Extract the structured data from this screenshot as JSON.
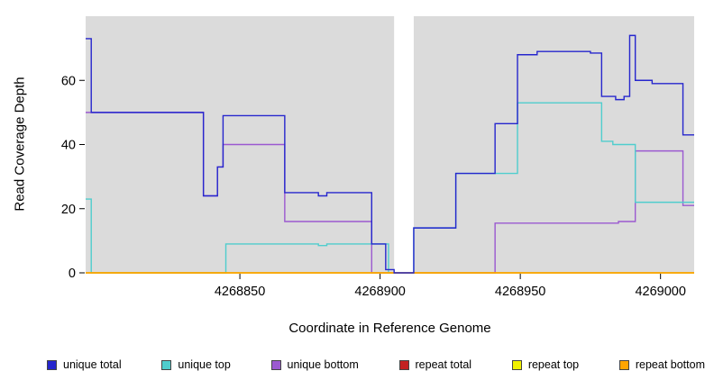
{
  "chart_data": {
    "type": "line",
    "step": true,
    "title": "",
    "xlabel": "Coordinate in Reference Genome",
    "ylabel": "Read Coverage Depth",
    "xlim": [
      4268795,
      4269012
    ],
    "ylim": [
      0,
      80
    ],
    "xticks": [
      4268850,
      4268900,
      4268950,
      4269000
    ],
    "yticks": [
      0,
      20,
      40,
      60
    ],
    "plot_bg": "#DBDBDB",
    "gap_region": {
      "x0": 4268905,
      "x1": 4268912,
      "color": "#FFFFFF"
    },
    "legend_position": "bottom",
    "series": [
      {
        "name": "unique total",
        "color": "#2626CD",
        "points": [
          [
            4268795,
            73
          ],
          [
            4268797,
            50
          ],
          [
            4268837,
            24
          ],
          [
            4268842,
            33
          ],
          [
            4268844,
            49
          ],
          [
            4268866,
            25
          ],
          [
            4268878,
            24
          ],
          [
            4268881,
            25
          ],
          [
            4268897,
            9
          ],
          [
            4268902,
            1
          ],
          [
            4268905,
            0
          ],
          [
            4268912,
            14
          ],
          [
            4268927,
            31
          ],
          [
            4268941,
            46.5
          ],
          [
            4268949,
            68
          ],
          [
            4268956,
            69
          ],
          [
            4268975,
            68.5
          ],
          [
            4268979,
            55
          ],
          [
            4268984,
            54
          ],
          [
            4268987,
            55
          ],
          [
            4268989,
            74
          ],
          [
            4268991,
            60
          ],
          [
            4268997,
            59
          ],
          [
            4269008,
            43
          ]
        ],
        "x_end": 4269012
      },
      {
        "name": "unique top",
        "color": "#4FCDCD",
        "points": [
          [
            4268795,
            23
          ],
          [
            4268797,
            0
          ],
          [
            4268845,
            9
          ],
          [
            4268878,
            8.5
          ],
          [
            4268881,
            9
          ],
          [
            4268903,
            0
          ],
          [
            4268912,
            14
          ],
          [
            4268927,
            31
          ],
          [
            4268949,
            53
          ],
          [
            4268979,
            41
          ],
          [
            4268983,
            40
          ],
          [
            4268991,
            22
          ]
        ],
        "x_end": 4269012
      },
      {
        "name": "unique bottom",
        "color": "#9B59D0",
        "points": [
          [
            4268795,
            50
          ],
          [
            4268837,
            24
          ],
          [
            4268842,
            33
          ],
          [
            4268844,
            40
          ],
          [
            4268866,
            16
          ],
          [
            4268897,
            0
          ],
          [
            4268941,
            15.5
          ],
          [
            4268985,
            16
          ],
          [
            4268991,
            38
          ],
          [
            4269008,
            21
          ]
        ],
        "x_end": 4269012
      },
      {
        "name": "repeat total",
        "color": "#C22121",
        "points": [
          [
            4268795,
            0
          ]
        ],
        "x_end": 4269012
      },
      {
        "name": "repeat top",
        "color": "#F0F000",
        "points": [
          [
            4268795,
            0
          ]
        ],
        "x_end": 4269012
      },
      {
        "name": "repeat bottom",
        "color": "#FFA500",
        "points": [
          [
            4268795,
            0
          ]
        ],
        "x_end": 4269012
      }
    ]
  }
}
